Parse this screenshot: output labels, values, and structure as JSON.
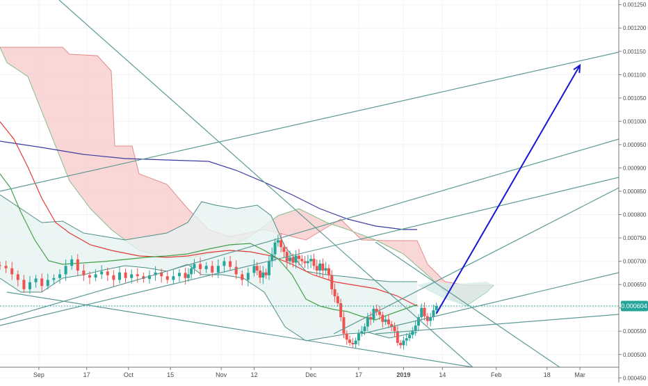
{
  "colors": {
    "background": "#ffffff",
    "grid": "#f0f3fa",
    "axis_text": "#4a4a4a",
    "candle_up": "#26a69a",
    "candle_down": "#ef5350",
    "kumo_red_fill": "#f8caca",
    "kumo_red_line": "#e88a8a",
    "kumo_green_fill": "#d6ece8",
    "bollinger": "#4d8d86",
    "bollinger_fill": "#e6f2f1",
    "ma_red": "#e53935",
    "ma_green": "#43a047",
    "ma_blue": "#3b3ba0",
    "trendline": "#5e9a96",
    "arrow": "#1515d4",
    "price_tag_bg": "#26a69a",
    "price_tag_text": "#ffffff",
    "current_price_line": "#26a69a"
  },
  "chart_data": {
    "type": "candlestick",
    "title": "",
    "y_axis": {
      "ticks": [
        "0.00125",
        "0.00120",
        "0.00115",
        "0.00110",
        "0.00105",
        "0.00100",
        "0.00095",
        "0.00090",
        "0.00085",
        "0.00080",
        "0.00075",
        "0.00070",
        "0.00065",
        "0.00060",
        "0.00055",
        "0.00050",
        "0.00045"
      ],
      "tick_labels": [
        "0.001250",
        "0.001200",
        "0.001150",
        "0.001100",
        "0.001050",
        "0.001000",
        "0.000950",
        "0.000900",
        "0.000850",
        "0.000800",
        "0.000750",
        "0.000700",
        "0.000650",
        "0.000600",
        "0.000550",
        "0.000500",
        "0.000450"
      ],
      "range": [
        0.00044,
        0.00126
      ]
    },
    "x_axis": {
      "range": [
        "2018-08-19",
        "2019-03-14"
      ],
      "ticks": [
        {
          "date": "2018-09-01",
          "label": "Sep"
        },
        {
          "date": "2018-09-17",
          "label": "17"
        },
        {
          "date": "2018-10-01",
          "label": "Oct"
        },
        {
          "date": "2018-10-15",
          "label": "15"
        },
        {
          "date": "2018-11-01",
          "label": "Nov"
        },
        {
          "date": "2018-11-12",
          "label": "12"
        },
        {
          "date": "2018-12-01",
          "label": "Dec"
        },
        {
          "date": "2018-12-17",
          "label": "17"
        },
        {
          "date": "2019-01-01",
          "label": "2019"
        },
        {
          "date": "2019-01-14",
          "label": "14"
        },
        {
          "date": "2019-02-01",
          "label": "Feb"
        },
        {
          "date": "2019-02-18",
          "label": "18"
        },
        {
          "date": "2019-03-01",
          "label": "Mar"
        }
      ]
    },
    "current_price": {
      "value": 0.000604,
      "label": "0.000604"
    },
    "candles_close": [
      0.00069,
      0.000685,
      0.000672,
      0.00066,
      0.00064,
      0.000655,
      0.000663,
      0.000647,
      0.00066,
      0.000664,
      0.000672,
      0.00069,
      0.000704,
      0.00068,
      0.00067,
      0.000665,
      0.000672,
      0.000678,
      0.00067,
      0.00066,
      0.000676,
      0.000664,
      0.000672,
      0.000668,
      0.000662,
      0.00067,
      0.000676,
      0.000668,
      0.00066,
      0.000668,
      0.000675,
      0.000664,
      0.000672,
      0.000685,
      0.000694,
      0.000683,
      0.00069,
      0.000676,
      0.00069,
      0.0007,
      0.000688,
      0.000672,
      0.00066,
      0.000675,
      0.00069,
      0.00068,
      0.000665,
      0.000676,
      0.00067,
      0.0007,
      0.000715,
      0.00074,
      0.000745,
      0.00073,
      0.00072,
      0.0007,
      0.000708,
      0.000697,
      0.000712,
      0.000705,
      0.0007,
      0.000696,
      0.0007,
      0.000705,
      0.00069,
      0.00068,
      0.000695,
      0.00068,
      0.000685,
      0.00067,
      0.00064,
      0.000625,
      0.00061,
      0.00058,
      0.000545,
      0.000532,
      0.000525,
      0.000522,
      0.00053,
      0.000545,
      0.00055,
      0.00056,
      0.00058,
      0.000575,
      0.000598,
      0.000592,
      0.000585,
      0.00057,
      0.000575,
      0.000565,
      0.00056,
      0.00055,
      0.000525,
      0.00052,
      0.00053,
      0.000535,
      0.000542,
      0.00055,
      0.000562,
      0.00058,
      0.0006,
      0.000582,
      0.000572,
      0.00058,
      0.000595,
      0.000604
    ],
    "candle_dates": [
      "2018-08-19",
      "2018-08-21",
      "2018-08-23",
      "2018-08-25",
      "2018-08-27",
      "2018-08-29",
      "2018-08-31",
      "2018-09-02",
      "2018-09-04",
      "2018-09-06",
      "2018-09-08",
      "2018-09-10",
      "2018-09-12",
      "2018-09-14",
      "2018-09-16",
      "2018-09-18",
      "2018-09-20",
      "2018-09-22",
      "2018-09-24",
      "2018-09-26",
      "2018-09-28",
      "2018-09-30",
      "2018-10-02",
      "2018-10-04",
      "2018-10-06",
      "2018-10-08",
      "2018-10-10",
      "2018-10-12",
      "2018-10-14",
      "2018-10-16",
      "2018-10-18",
      "2018-10-20",
      "2018-10-21",
      "2018-10-22",
      "2018-10-23",
      "2018-10-25",
      "2018-10-27",
      "2018-10-29",
      "2018-10-31",
      "2018-11-02",
      "2018-11-04",
      "2018-11-06",
      "2018-11-08",
      "2018-11-10",
      "2018-11-12",
      "2018-11-13",
      "2018-11-14",
      "2018-11-15",
      "2018-11-16",
      "2018-11-17",
      "2018-11-18",
      "2018-11-19",
      "2018-11-20",
      "2018-11-21",
      "2018-11-22",
      "2018-11-23",
      "2018-11-24",
      "2018-11-25",
      "2018-11-26",
      "2018-11-27",
      "2018-11-28",
      "2018-11-29",
      "2018-11-30",
      "2018-12-01",
      "2018-12-02",
      "2018-12-03",
      "2018-12-04",
      "2018-12-05",
      "2018-12-06",
      "2018-12-07",
      "2018-12-08",
      "2018-12-09",
      "2018-12-10",
      "2018-12-11",
      "2018-12-12",
      "2018-12-13",
      "2018-12-14",
      "2018-12-15",
      "2018-12-16",
      "2018-12-17",
      "2018-12-18",
      "2018-12-19",
      "2018-12-20",
      "2018-12-21",
      "2018-12-22",
      "2018-12-23",
      "2018-12-24",
      "2018-12-25",
      "2018-12-26",
      "2018-12-27",
      "2018-12-28",
      "2018-12-29",
      "2018-12-30",
      "2018-12-31",
      "2019-01-01",
      "2019-01-02",
      "2019-01-03",
      "2019-01-04",
      "2019-01-05",
      "2019-01-06",
      "2019-01-07",
      "2019-01-08",
      "2019-01-09",
      "2019-01-10",
      "2019-01-11",
      "2019-01-12"
    ]
  }
}
